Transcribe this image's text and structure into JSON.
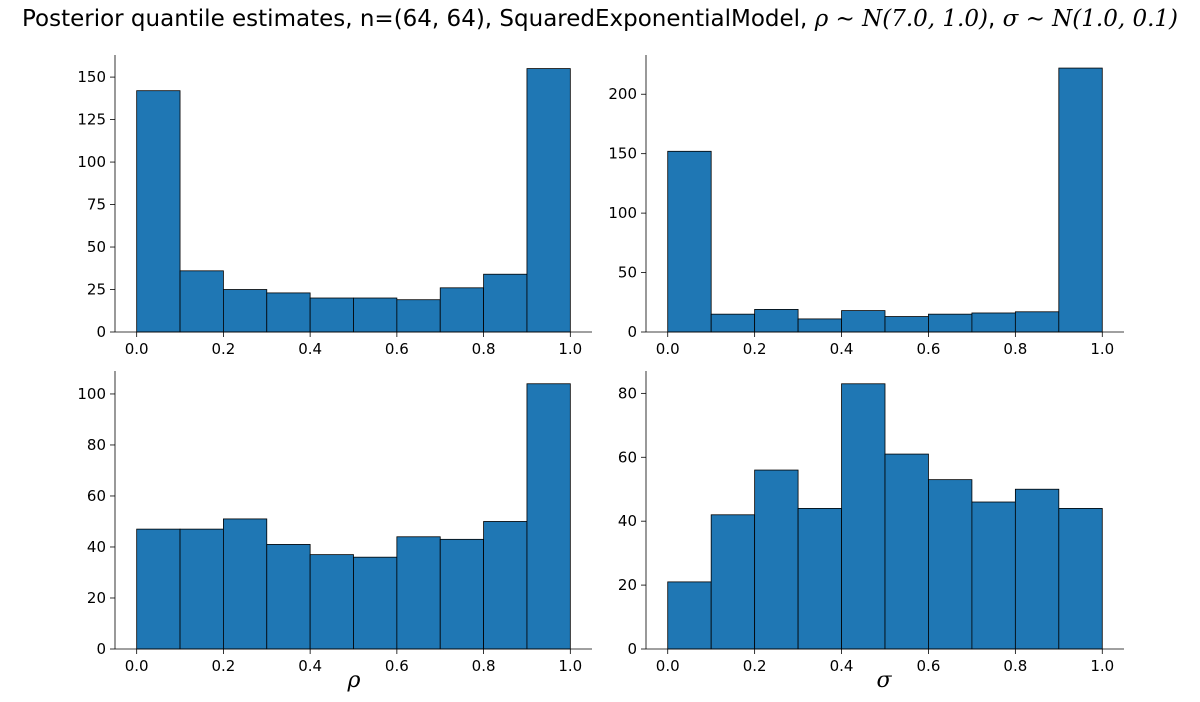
{
  "title": "Posterior quantile estimates, n=(64, 64), SquaredExponentialModel, ρ ∼ N(7.0, 1.0), σ ∼ N(1.0, 0.1)",
  "title_parts": {
    "prefix": "Posterior quantile estimates, n=(64, 64), SquaredExponentialModel, ",
    "rho_prior": "ρ ∼ N(7.0, 1.0)",
    "sep": ", ",
    "sigma_prior": "σ ∼ N(1.0, 0.1)"
  },
  "colors": {
    "bar": "#1f77b4",
    "edge": "#000000"
  },
  "chart_data": [
    {
      "type": "bar",
      "bin_edges": [
        0.0,
        0.1,
        0.2,
        0.3,
        0.4,
        0.5,
        0.6,
        0.7,
        0.8,
        0.9,
        1.0
      ],
      "values": [
        142,
        36,
        25,
        23,
        20,
        20,
        19,
        26,
        34,
        155
      ],
      "xlim": [
        -0.05,
        1.05
      ],
      "ylim": [
        0,
        163
      ],
      "xticks": [
        0.0,
        0.2,
        0.4,
        0.6,
        0.8,
        1.0
      ],
      "xtick_labels": [
        "0.0",
        "0.2",
        "0.4",
        "0.6",
        "0.8",
        "1.0"
      ],
      "yticks": [
        0,
        25,
        50,
        75,
        100,
        125,
        150
      ],
      "ytick_labels": [
        "0",
        "25",
        "50",
        "75",
        "100",
        "125",
        "150"
      ],
      "xlabel": "",
      "ylabel": ""
    },
    {
      "type": "bar",
      "bin_edges": [
        0.0,
        0.1,
        0.2,
        0.3,
        0.4,
        0.5,
        0.6,
        0.7,
        0.8,
        0.9,
        1.0
      ],
      "values": [
        152,
        15,
        19,
        11,
        18,
        13,
        15,
        16,
        17,
        222
      ],
      "xlim": [
        -0.05,
        1.05
      ],
      "ylim": [
        0,
        233
      ],
      "xticks": [
        0.0,
        0.2,
        0.4,
        0.6,
        0.8,
        1.0
      ],
      "xtick_labels": [
        "0.0",
        "0.2",
        "0.4",
        "0.6",
        "0.8",
        "1.0"
      ],
      "yticks": [
        0,
        50,
        100,
        150,
        200
      ],
      "ytick_labels": [
        "0",
        "50",
        "100",
        "150",
        "200"
      ],
      "xlabel": "",
      "ylabel": ""
    },
    {
      "type": "bar",
      "bin_edges": [
        0.0,
        0.1,
        0.2,
        0.3,
        0.4,
        0.5,
        0.6,
        0.7,
        0.8,
        0.9,
        1.0
      ],
      "values": [
        47,
        47,
        51,
        41,
        37,
        36,
        44,
        43,
        50,
        104
      ],
      "xlim": [
        -0.05,
        1.05
      ],
      "ylim": [
        0,
        109
      ],
      "xticks": [
        0.0,
        0.2,
        0.4,
        0.6,
        0.8,
        1.0
      ],
      "xtick_labels": [
        "0.0",
        "0.2",
        "0.4",
        "0.6",
        "0.8",
        "1.0"
      ],
      "yticks": [
        0,
        20,
        40,
        60,
        80,
        100
      ],
      "ytick_labels": [
        "0",
        "20",
        "40",
        "60",
        "80",
        "100"
      ],
      "xlabel": "ρ",
      "ylabel": ""
    },
    {
      "type": "bar",
      "bin_edges": [
        0.0,
        0.1,
        0.2,
        0.3,
        0.4,
        0.5,
        0.6,
        0.7,
        0.8,
        0.9,
        1.0
      ],
      "values": [
        21,
        42,
        56,
        44,
        83,
        61,
        53,
        46,
        50,
        44
      ],
      "xlim": [
        -0.05,
        1.05
      ],
      "ylim": [
        0,
        87
      ],
      "xticks": [
        0.0,
        0.2,
        0.4,
        0.6,
        0.8,
        1.0
      ],
      "xtick_labels": [
        "0.0",
        "0.2",
        "0.4",
        "0.6",
        "0.8",
        "1.0"
      ],
      "yticks": [
        0,
        20,
        40,
        60,
        80
      ],
      "ytick_labels": [
        "0",
        "20",
        "40",
        "60",
        "80"
      ],
      "xlabel": "σ",
      "ylabel": ""
    }
  ]
}
